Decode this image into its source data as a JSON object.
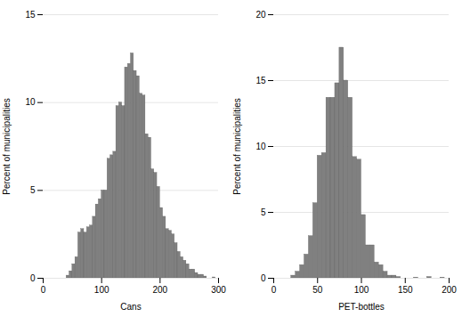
{
  "chart_data": [
    {
      "type": "histogram",
      "xlabel": "Cans",
      "ylabel": "Percent of municipalities",
      "bins": [
        0,
        5,
        10,
        15,
        20,
        25,
        30,
        35,
        40,
        45,
        50,
        55,
        60,
        65,
        70,
        75,
        80,
        85,
        90,
        95,
        100,
        105,
        110,
        115,
        120,
        125,
        130,
        135,
        140,
        145,
        150,
        155,
        160,
        165,
        170,
        175,
        180,
        185,
        190,
        195,
        200,
        205,
        210,
        215,
        220,
        225,
        230,
        235,
        240,
        245,
        250,
        255,
        260,
        265,
        270,
        275,
        280,
        285,
        290,
        295,
        300
      ],
      "values": [
        0,
        0,
        0,
        0,
        0,
        0,
        0,
        0,
        0.15,
        0.4,
        0.8,
        1.2,
        2.6,
        2.8,
        2.6,
        2.9,
        3.0,
        3.5,
        4.2,
        4.5,
        5.0,
        5.0,
        6.8,
        7.0,
        7.2,
        9.8,
        10.0,
        9.8,
        12.0,
        12.2,
        12.8,
        11.8,
        11.5,
        10.5,
        10.4,
        8.2,
        8.0,
        6.2,
        6.0,
        5.2,
        4.0,
        3.5,
        2.8,
        2.7,
        2.5,
        2.0,
        1.5,
        1.2,
        1.0,
        0.8,
        0.5,
        0.5,
        0.3,
        0.2,
        0.2,
        0.1,
        0.0,
        0.0,
        0.05,
        0.0
      ],
      "color": "#808080",
      "xlim": [
        0,
        300
      ],
      "xticks": [
        0,
        100,
        200,
        300
      ],
      "ylim": [
        0,
        15
      ],
      "yticks": [
        0,
        5,
        10,
        15
      ],
      "grid": true
    },
    {
      "type": "histogram",
      "xlabel": "PET-bottles",
      "ylabel": "Percent of municipalities",
      "bins": [
        0,
        5,
        10,
        15,
        20,
        25,
        30,
        35,
        40,
        45,
        50,
        55,
        60,
        65,
        70,
        75,
        80,
        85,
        90,
        95,
        100,
        105,
        110,
        115,
        120,
        125,
        130,
        135,
        140,
        145,
        150,
        155,
        160,
        165,
        170,
        175,
        180,
        185,
        190,
        195,
        200
      ],
      "values": [
        0,
        0,
        0,
        0,
        0.2,
        0.5,
        1.0,
        1.8,
        3.2,
        5.7,
        9.3,
        9.5,
        13.7,
        13.7,
        14.8,
        17.5,
        15.0,
        13.7,
        9.2,
        9.0,
        4.8,
        2.5,
        2.5,
        1.2,
        1.0,
        0.5,
        0.2,
        0.2,
        0.1,
        0.0,
        0.0,
        0.0,
        0.05,
        0.0,
        0.0,
        0.1,
        0.0,
        0.0,
        0.05,
        0.0
      ],
      "color": "#808080",
      "xlim": [
        0,
        200
      ],
      "xticks": [
        0,
        50,
        100,
        150,
        200
      ],
      "ylim": [
        0,
        20
      ],
      "yticks": [
        0,
        5,
        10,
        15,
        20
      ],
      "grid": true
    }
  ]
}
